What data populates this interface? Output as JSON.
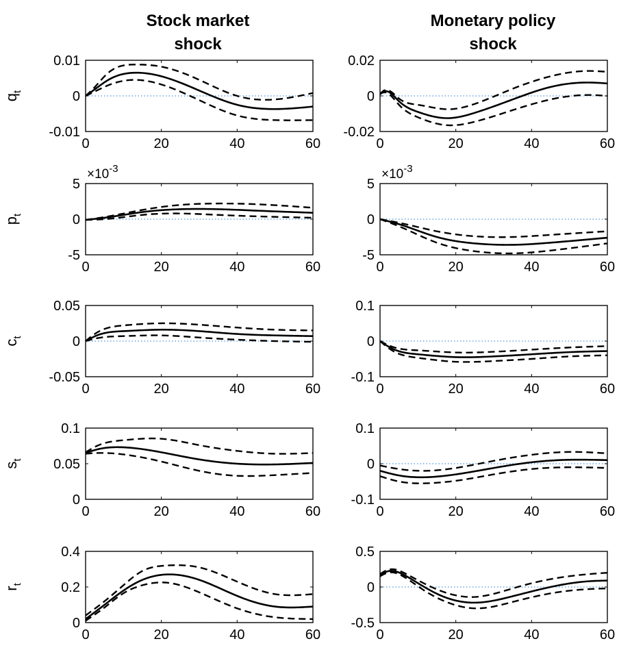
{
  "chart_data": {
    "type": "line",
    "column_titles": [
      [
        "Stock market",
        "shock"
      ],
      [
        "Monetary policy",
        "shock"
      ]
    ],
    "x": {
      "range": [
        0,
        60
      ],
      "ticks": [
        0,
        20,
        40,
        60
      ],
      "tick_labels": [
        "0",
        "20",
        "40",
        "60"
      ]
    },
    "series_styles": {
      "zero": "dotted blue",
      "response": "solid black",
      "bands": "dashed black"
    },
    "rows": [
      {
        "ylabel": "q",
        "ylabel_sub": "t",
        "panels": [
          {
            "column": 0,
            "multiplier": "",
            "ylim": [
              -0.01,
              0.01
            ],
            "yticks": [
              -0.01,
              0,
              0.01
            ],
            "ytick_labels": [
              "-0.01",
              "0",
              "0.01"
            ],
            "knots_x": [
              0,
              2,
              6,
              13,
              20,
              30,
              40,
              50,
              60
            ],
            "response": [
              0,
              0.0015,
              0.0045,
              0.0065,
              0.0055,
              0.0015,
              -0.0025,
              -0.0037,
              -0.003
            ],
            "upper": [
              0,
              0.002,
              0.0065,
              0.0088,
              0.0082,
              0.0045,
              0,
              -0.001,
              0.0008
            ],
            "lower": [
              0,
              0.001,
              0.003,
              0.0045,
              0.0032,
              -0.0012,
              -0.0055,
              -0.0068,
              -0.0068
            ]
          },
          {
            "column": 1,
            "multiplier": "",
            "ylim": [
              -0.02,
              0.02
            ],
            "yticks": [
              -0.02,
              0,
              0.02
            ],
            "ytick_labels": [
              "-0.02",
              "0",
              "0.02"
            ],
            "knots_x": [
              0,
              1,
              5,
              10,
              18,
              25,
              35,
              45,
              55,
              60
            ],
            "response": [
              0.001,
              0.0025,
              -0.003,
              -0.009,
              -0.0125,
              -0.0095,
              -0.002,
              0.005,
              0.0075,
              0.007
            ],
            "upper": [
              0.001,
              0.003,
              -0.0015,
              -0.005,
              -0.0075,
              -0.0045,
              0.004,
              0.011,
              0.014,
              0.0135
            ],
            "lower": [
              0.001,
              0.002,
              -0.005,
              -0.012,
              -0.0165,
              -0.0145,
              -0.008,
              -0.002,
              0.0005,
              0
            ]
          }
        ]
      },
      {
        "ylabel": "p",
        "ylabel_sub": "t",
        "panels": [
          {
            "column": 0,
            "multiplier": "×10",
            "multiplier_exp": "-3",
            "ylim": [
              -0.005,
              0.005
            ],
            "yticks": [
              -0.005,
              0,
              0.005
            ],
            "ytick_labels": [
              "-5",
              "0",
              "5"
            ],
            "knots_x": [
              0,
              5,
              15,
              25,
              35,
              45,
              60
            ],
            "response": [
              -0.0001,
              0.0002,
              0.001,
              0.0014,
              0.0014,
              0.0012,
              0.0009
            ],
            "upper": [
              -0.0001,
              0.0003,
              0.0013,
              0.002,
              0.0022,
              0.0021,
              0.0016
            ],
            "lower": [
              -0.0001,
              0,
              0.0006,
              0.0008,
              0.0006,
              0.0004,
              0.0002
            ]
          },
          {
            "column": 1,
            "multiplier": "×10",
            "multiplier_exp": "-3",
            "ylim": [
              -0.005,
              0.005
            ],
            "yticks": [
              -0.005,
              0,
              0.005
            ],
            "ytick_labels": [
              "-5",
              "0",
              "5"
            ],
            "knots_x": [
              0,
              5,
              15,
              25,
              35,
              45,
              60
            ],
            "response": [
              0,
              -0.0007,
              -0.0025,
              -0.0034,
              -0.0036,
              -0.0033,
              -0.0026
            ],
            "upper": [
              0,
              -0.0005,
              -0.0017,
              -0.0024,
              -0.0025,
              -0.0022,
              -0.0017
            ],
            "lower": [
              0,
              -0.001,
              -0.0033,
              -0.0045,
              -0.0048,
              -0.0044,
              -0.0034
            ]
          }
        ]
      },
      {
        "ylabel": "c",
        "ylabel_sub": "t",
        "panels": [
          {
            "column": 0,
            "multiplier": "",
            "ylim": [
              -0.05,
              0.05
            ],
            "yticks": [
              -0.05,
              0,
              0.05
            ],
            "ytick_labels": [
              "-0.05",
              "0",
              "0.05"
            ],
            "knots_x": [
              0,
              3,
              10,
              20,
              30,
              40,
              50,
              60
            ],
            "response": [
              0,
              0.008,
              0.014,
              0.016,
              0.014,
              0.01,
              0.008,
              0.007
            ],
            "upper": [
              0,
              0.012,
              0.022,
              0.025,
              0.023,
              0.019,
              0.016,
              0.015
            ],
            "lower": [
              0,
              0.004,
              0.007,
              0.008,
              0.005,
              0.002,
              0,
              -0.001
            ]
          },
          {
            "column": 1,
            "multiplier": "",
            "ylim": [
              -0.1,
              0.1
            ],
            "yticks": [
              -0.1,
              0,
              0.1
            ],
            "ytick_labels": [
              "-0.1",
              "0",
              "0.1"
            ],
            "knots_x": [
              0,
              3,
              10,
              20,
              30,
              40,
              50,
              60
            ],
            "response": [
              0,
              -0.02,
              -0.037,
              -0.045,
              -0.043,
              -0.037,
              -0.031,
              -0.028
            ],
            "upper": [
              0,
              -0.015,
              -0.026,
              -0.032,
              -0.03,
              -0.024,
              -0.018,
              -0.014
            ],
            "lower": [
              0,
              -0.025,
              -0.047,
              -0.058,
              -0.056,
              -0.05,
              -0.043,
              -0.04
            ]
          }
        ]
      },
      {
        "ylabel": "s",
        "ylabel_sub": "t",
        "panels": [
          {
            "column": 0,
            "multiplier": "",
            "ylim": [
              0,
              0.1
            ],
            "yticks": [
              0,
              0.05,
              0.1
            ],
            "ytick_labels": [
              "0",
              "0.05",
              "0.1"
            ],
            "knots_x": [
              0,
              3,
              10,
              20,
              30,
              40,
              50,
              60
            ],
            "response": [
              0.065,
              0.07,
              0.073,
              0.066,
              0.056,
              0.05,
              0.049,
              0.051
            ],
            "upper": [
              0.066,
              0.075,
              0.083,
              0.085,
              0.076,
              0.068,
              0.064,
              0.065
            ],
            "lower": [
              0.064,
              0.065,
              0.063,
              0.053,
              0.04,
              0.033,
              0.034,
              0.037
            ]
          },
          {
            "column": 1,
            "multiplier": "",
            "ylim": [
              -0.1,
              0.1
            ],
            "yticks": [
              -0.1,
              0,
              0.1
            ],
            "ytick_labels": [
              "-0.1",
              "0",
              "0.1"
            ],
            "knots_x": [
              0,
              5,
              12,
              20,
              30,
              40,
              50,
              60
            ],
            "response": [
              -0.02,
              -0.033,
              -0.038,
              -0.03,
              -0.012,
              0.004,
              0.011,
              0.01
            ],
            "upper": [
              -0.005,
              -0.015,
              -0.02,
              -0.012,
              0.008,
              0.025,
              0.033,
              0.029
            ],
            "lower": [
              -0.035,
              -0.05,
              -0.055,
              -0.048,
              -0.03,
              -0.015,
              -0.01,
              -0.012
            ]
          }
        ]
      },
      {
        "ylabel": "r",
        "ylabel_sub": "t",
        "panels": [
          {
            "column": 0,
            "multiplier": "",
            "ylim": [
              0,
              0.4
            ],
            "yticks": [
              0,
              0.2,
              0.4
            ],
            "ytick_labels": [
              "0",
              "0.2",
              "0.4"
            ],
            "knots_x": [
              0,
              5,
              10,
              15,
              21,
              30,
              40,
              50,
              60
            ],
            "response": [
              0.02,
              0.1,
              0.18,
              0.24,
              0.27,
              0.24,
              0.15,
              0.09,
              0.09
            ],
            "upper": [
              0.04,
              0.12,
              0.21,
              0.29,
              0.32,
              0.31,
              0.23,
              0.16,
              0.16
            ],
            "lower": [
              0.01,
              0.085,
              0.165,
              0.21,
              0.225,
              0.17,
              0.08,
              0.03,
              0.02
            ]
          },
          {
            "column": 1,
            "multiplier": "",
            "ylim": [
              -0.5,
              0.5
            ],
            "yticks": [
              -0.5,
              0,
              0.5
            ],
            "ytick_labels": [
              "-0.5",
              "0",
              "0.5"
            ],
            "knots_x": [
              0,
              2,
              7,
              12,
              18,
              25,
              35,
              45,
              55,
              60
            ],
            "response": [
              0.17,
              0.22,
              0.15,
              -0.01,
              -0.16,
              -0.22,
              -0.13,
              0,
              0.08,
              0.09
            ],
            "upper": [
              0.18,
              0.24,
              0.18,
              0.04,
              -0.09,
              -0.14,
              -0.02,
              0.11,
              0.18,
              0.2
            ],
            "lower": [
              0.15,
              0.2,
              0.12,
              -0.06,
              -0.22,
              -0.3,
              -0.21,
              -0.09,
              -0.03,
              -0.02
            ]
          }
        ]
      }
    ]
  }
}
